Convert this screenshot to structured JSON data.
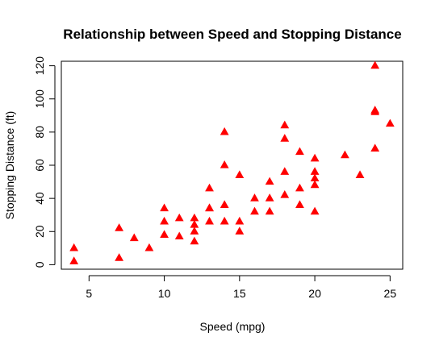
{
  "chart_data": {
    "type": "scatter",
    "title": "Relationship between Speed and Stopping Distance",
    "xlabel": "Speed (mpg)",
    "ylabel": "Stopping Distance (ft)",
    "xlim": [
      3.16,
      25.84
    ],
    "ylim": [
      -2.72,
      122.72
    ],
    "xticks": [
      5,
      10,
      15,
      20,
      25
    ],
    "yticks": [
      0,
      20,
      40,
      60,
      80,
      100,
      120
    ],
    "grid": false,
    "legend": "none",
    "marker_color": "#ff0000",
    "marker": "filled-triangle",
    "points": [
      {
        "x": 4,
        "y": 2
      },
      {
        "x": 4,
        "y": 10
      },
      {
        "x": 7,
        "y": 4
      },
      {
        "x": 7,
        "y": 22
      },
      {
        "x": 8,
        "y": 16
      },
      {
        "x": 9,
        "y": 10
      },
      {
        "x": 10,
        "y": 18
      },
      {
        "x": 10,
        "y": 26
      },
      {
        "x": 10,
        "y": 34
      },
      {
        "x": 11,
        "y": 17
      },
      {
        "x": 11,
        "y": 28
      },
      {
        "x": 12,
        "y": 14
      },
      {
        "x": 12,
        "y": 20
      },
      {
        "x": 12,
        "y": 24
      },
      {
        "x": 12,
        "y": 28
      },
      {
        "x": 13,
        "y": 26
      },
      {
        "x": 13,
        "y": 34
      },
      {
        "x": 13,
        "y": 34
      },
      {
        "x": 13,
        "y": 46
      },
      {
        "x": 14,
        "y": 26
      },
      {
        "x": 14,
        "y": 36
      },
      {
        "x": 14,
        "y": 60
      },
      {
        "x": 14,
        "y": 80
      },
      {
        "x": 15,
        "y": 20
      },
      {
        "x": 15,
        "y": 26
      },
      {
        "x": 15,
        "y": 54
      },
      {
        "x": 16,
        "y": 32
      },
      {
        "x": 16,
        "y": 40
      },
      {
        "x": 17,
        "y": 32
      },
      {
        "x": 17,
        "y": 40
      },
      {
        "x": 17,
        "y": 50
      },
      {
        "x": 18,
        "y": 42
      },
      {
        "x": 18,
        "y": 56
      },
      {
        "x": 18,
        "y": 76
      },
      {
        "x": 18,
        "y": 84
      },
      {
        "x": 19,
        "y": 36
      },
      {
        "x": 19,
        "y": 46
      },
      {
        "x": 19,
        "y": 68
      },
      {
        "x": 20,
        "y": 32
      },
      {
        "x": 20,
        "y": 48
      },
      {
        "x": 20,
        "y": 52
      },
      {
        "x": 20,
        "y": 56
      },
      {
        "x": 20,
        "y": 64
      },
      {
        "x": 22,
        "y": 66
      },
      {
        "x": 23,
        "y": 54
      },
      {
        "x": 24,
        "y": 70
      },
      {
        "x": 24,
        "y": 92
      },
      {
        "x": 24,
        "y": 93
      },
      {
        "x": 24,
        "y": 120
      },
      {
        "x": 25,
        "y": 85
      }
    ]
  }
}
